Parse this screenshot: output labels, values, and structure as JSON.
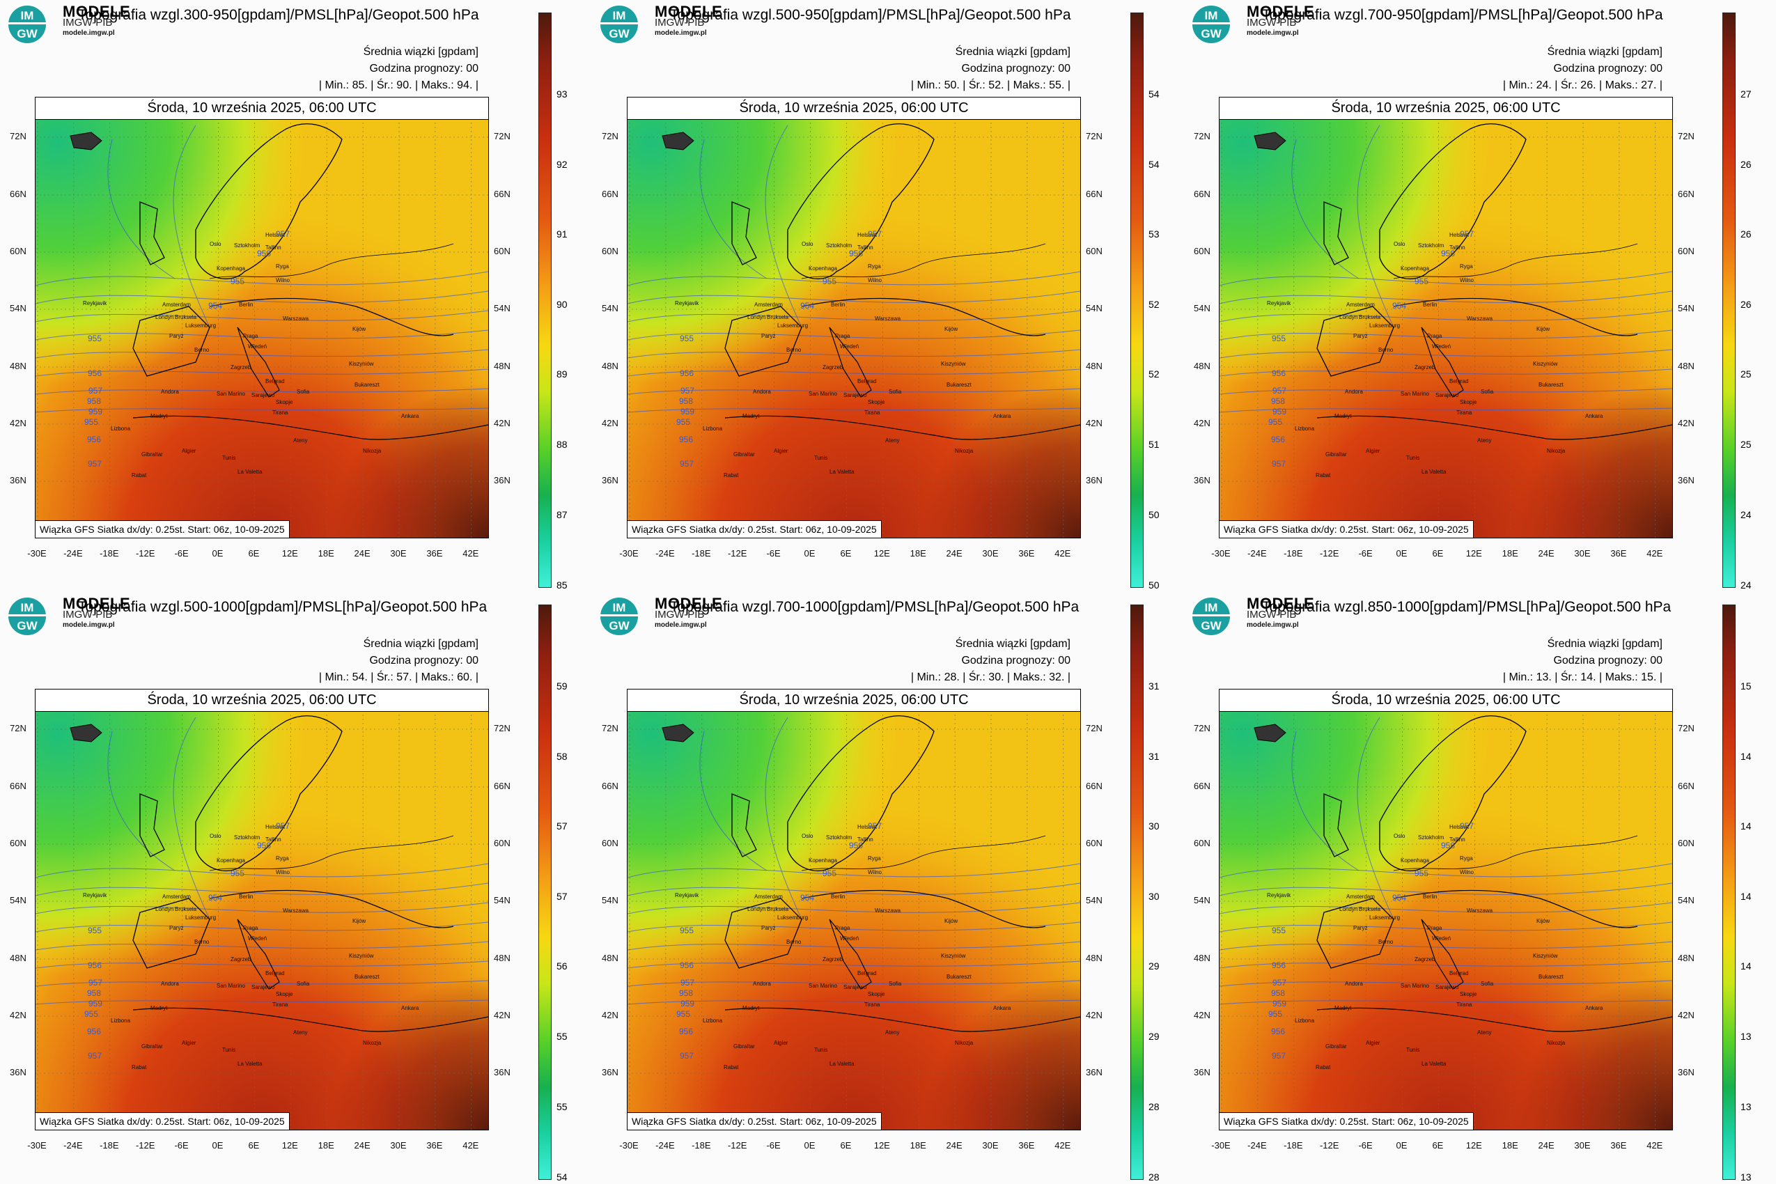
{
  "brand": {
    "modele": "MODELE",
    "imgw": "IMGW-PIB",
    "site": "modele.imgw.pl",
    "logo_text": [
      "IM",
      "GW"
    ]
  },
  "common": {
    "subtitle": "Średnia wiązki [gpdam]",
    "forecast_hour": "Godzina prognozy: 00",
    "date": "Środa, 10 września 2025, 06:00 UTC",
    "model_info": "Wiązka GFS Siatka dx/dy: 0.25st. Start: 06z, 10-09-2025",
    "lat_labels": [
      "72N",
      "66N",
      "60N",
      "54N",
      "48N",
      "42N",
      "36N"
    ],
    "lon_labels": [
      "-30E",
      "-24E",
      "-18E",
      "-12E",
      "-6E",
      "0E",
      "6E",
      "12E",
      "18E",
      "24E",
      "30E",
      "36E",
      "42E"
    ],
    "cities": [
      "Helsinki",
      "Tallinn",
      "Oslo",
      "Sztokholm",
      "Ryga",
      "Kopenhaga",
      "Wilno",
      "Amsterdam",
      "Berlin",
      "Londyn",
      "Warszawa",
      "Bruksela",
      "Luksemburg",
      "Praga",
      "Paryż",
      "Kijów",
      "Wiedeń",
      "Berno",
      "Kiszyniów",
      "Bukareszt",
      "Zagrzeb",
      "Belgrad",
      "Andora",
      "Sofia",
      "San Marino",
      "Sarajewo",
      "Skopje",
      "Madryt",
      "Tirana",
      "Ankara",
      "Lizbona",
      "Ateny",
      "Gibraltar",
      "Algier",
      "Tunis",
      "La Valetta",
      "Nikozja",
      "Rabat",
      "Reykjavik"
    ],
    "contour_labels": [
      "957",
      "956",
      "955",
      "954",
      "955",
      "956",
      "957",
      "958",
      "959",
      "955",
      "956",
      "957"
    ]
  },
  "colors": {
    "accent_teal": "#1aa0a0",
    "contour": "#3a5ad0"
  },
  "panels": [
    {
      "title": "Topografia wzgl.300-950[gpdam]/PMSL[hPa]/Geopot.500 hPa",
      "stats": "| Min.:   85. | Śr.:   90. | Maks.:   94. |",
      "colorbar_ticks": [
        "93",
        "92",
        "91",
        "90",
        "89",
        "88",
        "87",
        "85"
      ]
    },
    {
      "title": "Topografia wzgl.500-950[gpdam]/PMSL[hPa]/Geopot.500 hPa",
      "stats": "| Min.:   50. | Śr.:   52. | Maks.:   55. |",
      "colorbar_ticks": [
        "54",
        "54",
        "53",
        "52",
        "52",
        "51",
        "50",
        "50"
      ]
    },
    {
      "title": "Topografia wzgl.700-950[gpdam]/PMSL[hPa]/Geopot.500 hPa",
      "stats": "| Min.:   24. | Śr.:   26. | Maks.:   27. |",
      "colorbar_ticks": [
        "27",
        "26",
        "26",
        "26",
        "25",
        "25",
        "24",
        "24"
      ]
    },
    {
      "title": "Topografia wzgl.500-1000[gpdam]/PMSL[hPa]/Geopot.500 hPa",
      "stats": "| Min.:   54. | Śr.:   57. | Maks.:   60. |",
      "colorbar_ticks": [
        "59",
        "58",
        "57",
        "57",
        "56",
        "55",
        "55",
        "54"
      ]
    },
    {
      "title": "Topografia wzgl.700-1000[gpdam]/PMSL[hPa]/Geopot.500 hPa",
      "stats": "| Min.:   28. | Śr.:   30. | Maks.:   32. |",
      "colorbar_ticks": [
        "31",
        "31",
        "30",
        "30",
        "29",
        "29",
        "28",
        "28"
      ]
    },
    {
      "title": "Topografia wzgl.850-1000[gpdam]/PMSL[hPa]/Geopot.500 hPa",
      "stats": "| Min.:   13. | Śr.:   14. | Maks.:   15. |",
      "colorbar_ticks": [
        "15",
        "14",
        "14",
        "14",
        "14",
        "13",
        "13",
        "13"
      ]
    }
  ]
}
